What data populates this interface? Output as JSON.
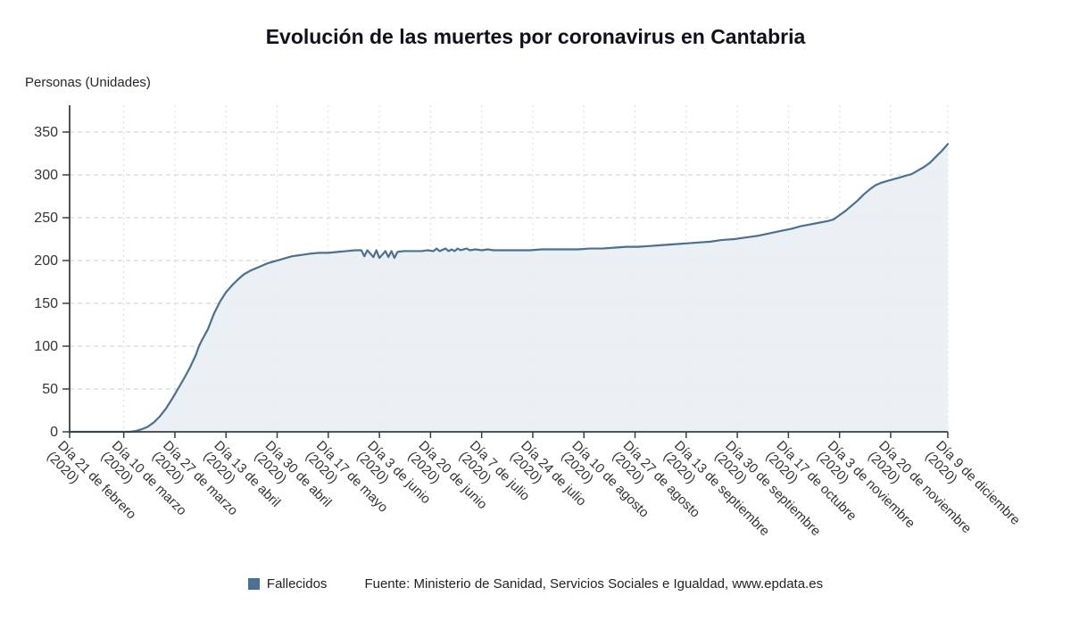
{
  "colors": {
    "line": "#4c7090",
    "area": "#e9eef3",
    "grid_h": "#c9cdd2",
    "grid_v": "#d8dde2",
    "axis": "#3d3d3d",
    "text": "#333333"
  },
  "chart_data": {
    "type": "area",
    "title": "Evolución de las muertes por coronavirus en Cantabria",
    "ylabel": "Personas (Unidades)",
    "xlabel": "",
    "source": "Fuente: Ministerio de Sanidad, Servicios Sociales e Igualdad, www.epdata.es",
    "grid": true,
    "legend_position": "bottom",
    "ylim": [
      0,
      350
    ],
    "y_ticks": [
      0,
      50,
      100,
      150,
      200,
      250,
      300,
      350
    ],
    "x_range": [
      0,
      292
    ],
    "x_ticks": [
      {
        "day": 0,
        "label": "Día 21 de febrero",
        "year": "(2020)"
      },
      {
        "day": 18,
        "label": "Día 10 de marzo",
        "year": "(2020)"
      },
      {
        "day": 35,
        "label": "Día 27 de marzo",
        "year": "(2020)"
      },
      {
        "day": 52,
        "label": "Día 13 de abril",
        "year": "(2020)"
      },
      {
        "day": 69,
        "label": "Día 30 de abril",
        "year": "(2020)"
      },
      {
        "day": 86,
        "label": "Día 17 de mayo",
        "year": "(2020)"
      },
      {
        "day": 103,
        "label": "Día 3 de junio",
        "year": "(2020)"
      },
      {
        "day": 120,
        "label": "Día 20 de junio",
        "year": "(2020)"
      },
      {
        "day": 137,
        "label": "Día 7 de julio",
        "year": "(2020)"
      },
      {
        "day": 154,
        "label": "Día 24 de julio",
        "year": "(2020)"
      },
      {
        "day": 171,
        "label": "Día 10 de agosto",
        "year": "(2020)"
      },
      {
        "day": 188,
        "label": "Día 27 de agosto",
        "year": "(2020)"
      },
      {
        "day": 205,
        "label": "Día 13 de septiembre",
        "year": "(2020)"
      },
      {
        "day": 222,
        "label": "Día 30 de septiembre",
        "year": "(2020)"
      },
      {
        "day": 239,
        "label": "Día 17 de octubre",
        "year": "(2020)"
      },
      {
        "day": 256,
        "label": "Día 3 de noviembre",
        "year": "(2020)"
      },
      {
        "day": 273,
        "label": "Día 20 de noviembre",
        "year": "(2020)"
      },
      {
        "day": 292,
        "label": "Día 9 de diciembre",
        "year": "(2020)"
      }
    ],
    "series": [
      {
        "name": "Fallecidos",
        "color": "#4c7090",
        "points": [
          [
            0,
            0
          ],
          [
            12,
            0
          ],
          [
            18,
            0
          ],
          [
            20,
            0
          ],
          [
            22,
            1
          ],
          [
            24,
            3
          ],
          [
            26,
            6
          ],
          [
            28,
            11
          ],
          [
            30,
            18
          ],
          [
            32,
            27
          ],
          [
            34,
            38
          ],
          [
            35,
            44
          ],
          [
            36,
            50
          ],
          [
            38,
            62
          ],
          [
            40,
            75
          ],
          [
            42,
            90
          ],
          [
            43,
            100
          ],
          [
            44,
            107
          ],
          [
            46,
            120
          ],
          [
            48,
            138
          ],
          [
            50,
            152
          ],
          [
            52,
            163
          ],
          [
            54,
            171
          ],
          [
            56,
            178
          ],
          [
            58,
            184
          ],
          [
            60,
            188
          ],
          [
            62,
            191
          ],
          [
            64,
            194
          ],
          [
            66,
            197
          ],
          [
            68,
            199
          ],
          [
            70,
            201
          ],
          [
            72,
            203
          ],
          [
            74,
            205
          ],
          [
            76,
            206
          ],
          [
            78,
            207
          ],
          [
            80,
            208
          ],
          [
            83,
            209
          ],
          [
            86,
            209
          ],
          [
            89,
            210
          ],
          [
            92,
            211
          ],
          [
            95,
            212
          ],
          [
            97,
            212
          ],
          [
            98,
            205
          ],
          [
            99,
            212
          ],
          [
            101,
            204
          ],
          [
            102,
            212
          ],
          [
            103,
            203
          ],
          [
            105,
            211
          ],
          [
            106,
            204
          ],
          [
            107,
            211
          ],
          [
            108,
            203
          ],
          [
            109,
            210
          ],
          [
            111,
            211
          ],
          [
            114,
            211
          ],
          [
            117,
            211
          ],
          [
            119,
            212
          ],
          [
            121,
            211
          ],
          [
            122,
            214
          ],
          [
            123,
            211
          ],
          [
            125,
            214
          ],
          [
            126,
            211
          ],
          [
            127,
            213
          ],
          [
            128,
            211
          ],
          [
            129,
            214
          ],
          [
            130,
            212
          ],
          [
            132,
            214
          ],
          [
            133,
            212
          ],
          [
            135,
            213
          ],
          [
            137,
            212
          ],
          [
            139,
            213
          ],
          [
            141,
            212
          ],
          [
            145,
            212
          ],
          [
            149,
            212
          ],
          [
            153,
            212
          ],
          [
            157,
            213
          ],
          [
            161,
            213
          ],
          [
            165,
            213
          ],
          [
            169,
            213
          ],
          [
            173,
            214
          ],
          [
            177,
            214
          ],
          [
            181,
            215
          ],
          [
            185,
            216
          ],
          [
            189,
            216
          ],
          [
            193,
            217
          ],
          [
            197,
            218
          ],
          [
            201,
            219
          ],
          [
            205,
            220
          ],
          [
            209,
            221
          ],
          [
            213,
            222
          ],
          [
            217,
            224
          ],
          [
            221,
            225
          ],
          [
            225,
            227
          ],
          [
            229,
            229
          ],
          [
            233,
            232
          ],
          [
            237,
            235
          ],
          [
            240,
            237
          ],
          [
            243,
            240
          ],
          [
            246,
            242
          ],
          [
            249,
            244
          ],
          [
            252,
            246
          ],
          [
            254,
            248
          ],
          [
            256,
            253
          ],
          [
            258,
            258
          ],
          [
            260,
            264
          ],
          [
            262,
            270
          ],
          [
            264,
            277
          ],
          [
            266,
            283
          ],
          [
            268,
            288
          ],
          [
            270,
            291
          ],
          [
            272,
            293
          ],
          [
            274,
            295
          ],
          [
            276,
            297
          ],
          [
            278,
            299
          ],
          [
            280,
            301
          ],
          [
            282,
            305
          ],
          [
            284,
            309
          ],
          [
            286,
            314
          ],
          [
            288,
            321
          ],
          [
            290,
            328
          ],
          [
            291,
            332
          ],
          [
            292,
            336
          ]
        ]
      }
    ]
  }
}
